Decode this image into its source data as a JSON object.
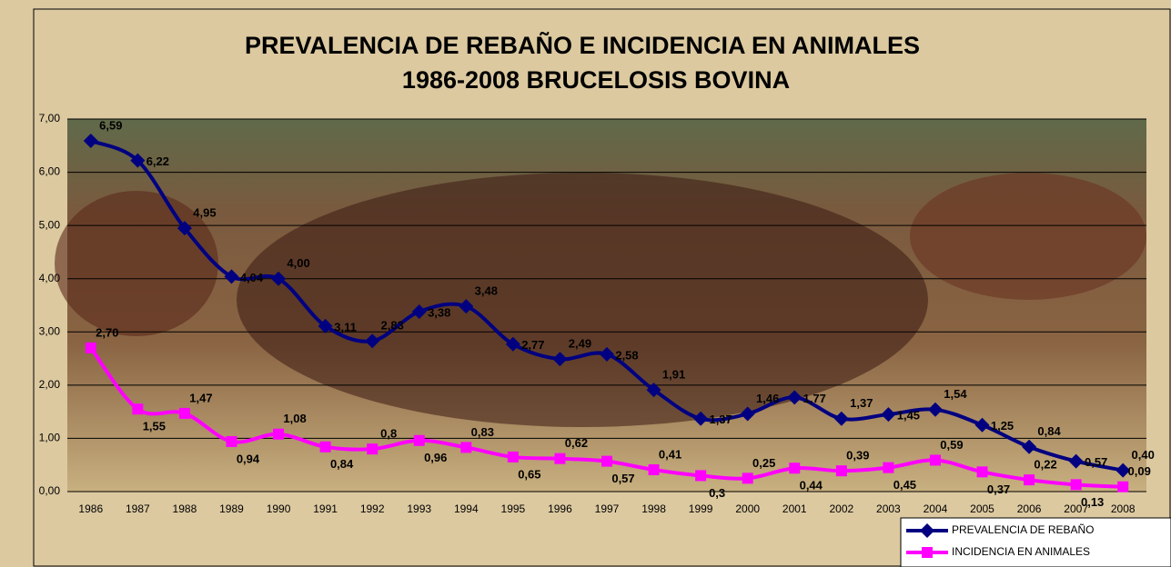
{
  "chart_data": {
    "type": "line",
    "title": "PREVALENCIA DE REBAÑO E INCIDENCIA EN ANIMALES",
    "subtitle": "1986-2008 BRUCELOSIS BOVINA",
    "categories": [
      "1986",
      "1987",
      "1988",
      "1989",
      "1990",
      "1991",
      "1992",
      "1993",
      "1994",
      "1995",
      "1996",
      "1997",
      "1998",
      "1999",
      "2000",
      "2001",
      "2002",
      "2003",
      "2004",
      "2005",
      "2006",
      "2007",
      "2008"
    ],
    "series": [
      {
        "name": "PREVALENCIA DE REBAÑO",
        "color": "#000080",
        "marker": "diamond",
        "values": [
          6.59,
          6.22,
          4.95,
          4.04,
          4.0,
          3.11,
          2.83,
          3.38,
          3.48,
          2.77,
          2.49,
          2.58,
          1.91,
          1.37,
          1.46,
          1.77,
          1.37,
          1.45,
          1.54,
          1.25,
          0.84,
          0.57,
          0.4
        ],
        "value_labels": [
          "6,59",
          "6,22",
          "4,95",
          "4,04",
          "4,00",
          "3,11",
          "2,83",
          "3,38",
          "3,48",
          "2,77",
          "2,49",
          "2,58",
          "1,91",
          "1,37",
          "1,46",
          "1,77",
          "1,37",
          "1,45",
          "1,54",
          "1,25",
          "0,84",
          "0,57",
          "0,40"
        ]
      },
      {
        "name": "INCIDENCIA EN ANIMALES",
        "color": "#ff00ff",
        "marker": "square",
        "values": [
          2.7,
          1.55,
          1.47,
          0.94,
          1.08,
          0.84,
          0.8,
          0.96,
          0.83,
          0.65,
          0.62,
          0.57,
          0.41,
          0.3,
          0.25,
          0.44,
          0.39,
          0.45,
          0.59,
          0.37,
          0.22,
          0.13,
          0.09
        ],
        "value_labels": [
          "2,70",
          "1,55",
          "1,47",
          "0,94",
          "1,08",
          "0,84",
          "0,8",
          "0,96",
          "0,83",
          "0,65",
          "0,62",
          "0,57",
          "0,41",
          "0,3",
          "0,25",
          "0,44",
          "0,39",
          "0,45",
          "0,59",
          "0,37",
          "0,22",
          "0,13",
          "0,09"
        ]
      }
    ],
    "ylim": [
      0,
      7
    ],
    "yticks": [
      {
        "value": 0,
        "label": "0,00"
      },
      {
        "value": 1,
        "label": "1,00"
      },
      {
        "value": 2,
        "label": "2,00"
      },
      {
        "value": 3,
        "label": "3,00"
      },
      {
        "value": 4,
        "label": "4,00"
      },
      {
        "value": 5,
        "label": "5,00"
      },
      {
        "value": 6,
        "label": "6,00"
      },
      {
        "value": 7,
        "label": "7,00"
      }
    ],
    "grid": true,
    "legend": "lower right"
  }
}
